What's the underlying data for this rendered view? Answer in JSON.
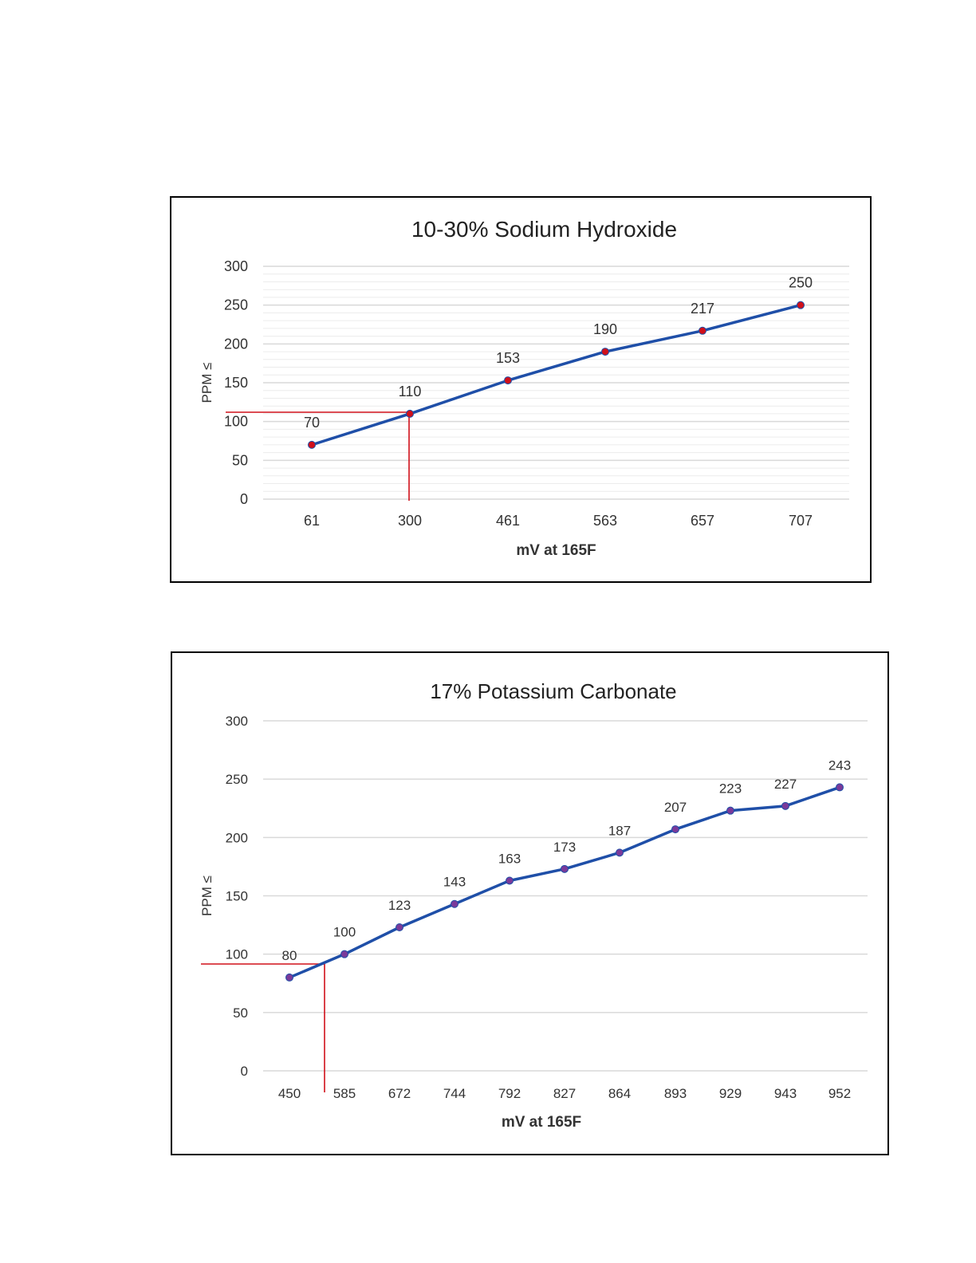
{
  "colors": {
    "line": "#1f4fa8",
    "grid": "#d9d9d9",
    "reference": "#d0101a",
    "marker_chart1": "#d0101a",
    "marker_chart2": "#7a3a9a"
  },
  "chart_data": [
    {
      "type": "line",
      "title": "10-30% Sodium Hydroxide",
      "xlabel": "mV at 165F",
      "ylabel": "PPM ≤",
      "categories": [
        "61",
        "300",
        "461",
        "563",
        "657",
        "707"
      ],
      "values": [
        70,
        110,
        153,
        190,
        217,
        250
      ],
      "data_labels": [
        "70",
        "110",
        "153",
        "190",
        "217",
        "250"
      ],
      "yticks": [
        "0",
        "50",
        "100",
        "150",
        "200",
        "250",
        "300"
      ],
      "ylim": [
        0,
        300
      ],
      "grid": true,
      "reference_line": {
        "x_category": "300",
        "y": 112
      }
    },
    {
      "type": "line",
      "title": "17% Potassium Carbonate",
      "xlabel": "mV at 165F",
      "ylabel": "PPM ≤",
      "categories": [
        "450",
        "585",
        "672",
        "744",
        "792",
        "827",
        "864",
        "893",
        "929",
        "943",
        "952"
      ],
      "values": [
        80,
        100,
        123,
        143,
        163,
        173,
        187,
        207,
        223,
        227,
        243
      ],
      "data_labels": [
        "80",
        "100",
        "123",
        "143",
        "163",
        "173",
        "187",
        "207",
        "223",
        "227",
        "243"
      ],
      "yticks": [
        "0",
        "50",
        "100",
        "150",
        "200",
        "250",
        "300"
      ],
      "ylim": [
        0,
        300
      ],
      "grid": true,
      "reference_line": {
        "x_between": [
          "450",
          "585"
        ],
        "y": 92
      }
    }
  ]
}
